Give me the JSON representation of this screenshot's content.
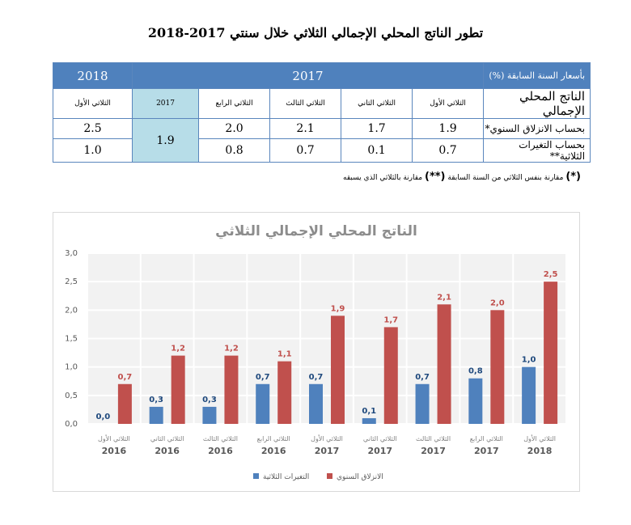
{
  "title": "تطور الناتج المحلي الإجمالي الثلاثي خلال سنتي 2017-2018",
  "table": {
    "basis_label": "بأسعار السنة السابقة (%)",
    "year_2017": "2017",
    "year_2018": "2018",
    "row_header": "الناتج المحلي الإجمالي",
    "quarters_2017": [
      "الثلاثي الأول",
      "الثلاثي الثاني",
      "الثلاثي الثالث",
      "الثلاثي الرابع"
    ],
    "annual_label": "2017",
    "quarter_2018": "الثلاثي الأول",
    "rows": [
      {
        "label": "بحساب الانزلاق السنوي*",
        "q": [
          "1.9",
          "1.7",
          "2.1",
          "2.0"
        ],
        "q2018": "2.5"
      },
      {
        "label": "بحساب التغيرات الثلاثية**",
        "q": [
          "0.7",
          "0.1",
          "0.7",
          "0.8"
        ],
        "q2018": "1.0"
      }
    ],
    "annual_value": "1.9"
  },
  "note": {
    "star1": "(*)",
    "text1": "مقارنة بنفس الثلاثي من السنة السابقة",
    "star2": "(**)",
    "text2": "مقارنة بالثلاثي الذي يسبقه"
  },
  "chart_data": {
    "type": "bar",
    "title": "الناتج المحلي الإجمالي الثلاثي",
    "categories": [
      {
        "quarter": "الثلاثي الأول",
        "year": "2016"
      },
      {
        "quarter": "الثلاثي الثاني",
        "year": "2016"
      },
      {
        "quarter": "الثلاثي الثالث",
        "year": "2016"
      },
      {
        "quarter": "الثلاثي الرابع",
        "year": "2016"
      },
      {
        "quarter": "الثلاثي الأول",
        "year": "2017"
      },
      {
        "quarter": "الثلاثي الثاني",
        "year": "2017"
      },
      {
        "quarter": "الثلاثي الثالث",
        "year": "2017"
      },
      {
        "quarter": "الثلاثي الرابع",
        "year": "2017"
      },
      {
        "quarter": "الثلاثي الأول",
        "year": "2018"
      }
    ],
    "series": [
      {
        "name": "التغيرات الثلاثية",
        "color": "#4f81bd",
        "label_color": "#1f497d",
        "values": [
          0.0,
          0.3,
          0.3,
          0.7,
          0.7,
          0.1,
          0.7,
          0.8,
          1.0
        ]
      },
      {
        "name": "الانزلاق السنوي",
        "color": "#c0504d",
        "label_color": "#c0504d",
        "values": [
          0.7,
          1.2,
          1.2,
          1.1,
          1.9,
          1.7,
          2.1,
          2.0,
          2.5
        ]
      }
    ],
    "yticks": [
      "0,0",
      "0,5",
      "1,0",
      "1,5",
      "2,0",
      "2,5",
      "3,0"
    ],
    "ylim": [
      0,
      3
    ],
    "grid": true,
    "legend_position": "bottom"
  }
}
